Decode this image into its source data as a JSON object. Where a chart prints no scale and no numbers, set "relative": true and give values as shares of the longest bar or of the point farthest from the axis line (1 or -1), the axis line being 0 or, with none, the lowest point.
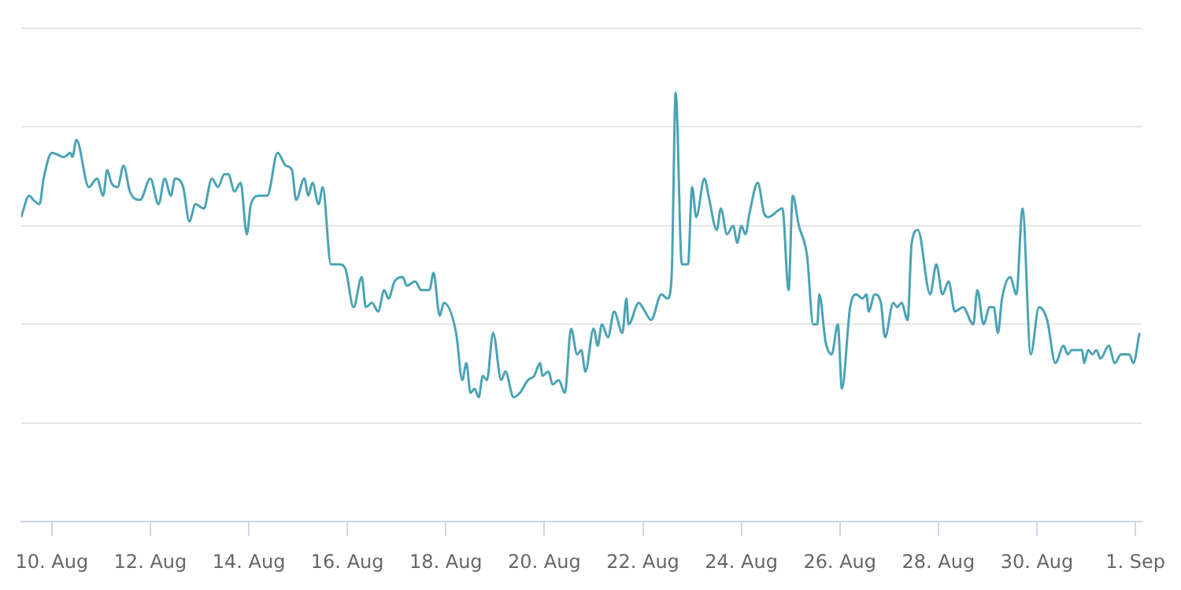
{
  "chart_data": {
    "type": "line",
    "relative": true,
    "grid": "y",
    "legend": false,
    "marker": "none",
    "line_style": "solid",
    "xlim": [
      "--08-09T09:00",
      "--09-01T03:00"
    ],
    "xticks": [
      {
        "value": "--08-10",
        "label": "10. Aug"
      },
      {
        "value": "--08-12",
        "label": "12. Aug"
      },
      {
        "value": "--08-14",
        "label": "14. Aug"
      },
      {
        "value": "--08-16",
        "label": "16. Aug"
      },
      {
        "value": "--08-18",
        "label": "18. Aug"
      },
      {
        "value": "--08-20",
        "label": "20. Aug"
      },
      {
        "value": "--08-22",
        "label": "22. Aug"
      },
      {
        "value": "--08-24",
        "label": "24. Aug"
      },
      {
        "value": "--08-26",
        "label": "26. Aug"
      },
      {
        "value": "--08-28",
        "label": "28. Aug"
      },
      {
        "value": "--08-30",
        "label": "30. Aug"
      },
      {
        "value": "--09-01",
        "label": "1. Sep"
      }
    ],
    "x": [
      "--08-09T09:00",
      "--08-09T13:00",
      "--08-09T15:00",
      "--08-09T18:00",
      "--08-09T20:00",
      "--08-10T00:00",
      "--08-10T06:00",
      "--08-10T09:00",
      "--08-10T10:00",
      "--08-10T12:00",
      "--08-10T18:00",
      "--08-10T22:00",
      "--08-11T01:00",
      "--08-11T03:00",
      "--08-11T05:00",
      "--08-11T08:00",
      "--08-11T11:00",
      "--08-11T14:00",
      "--08-11T19:00",
      "--08-12T00:00",
      "--08-12T04:00",
      "--08-12T07:00",
      "--08-12T10:00",
      "--08-12T12:00",
      "--08-12T16:00",
      "--08-12T19:00",
      "--08-12T22:00",
      "--08-13T02:00",
      "--08-13T06:00",
      "--08-13T09:00",
      "--08-13T12:00",
      "--08-13T14:00",
      "--08-13T17:00",
      "--08-13T20:00",
      "--08-13T23:00",
      "--08-14T01:00",
      "--08-14T05:00",
      "--08-14T09:00",
      "--08-14T14:00",
      "--08-14T18:00",
      "--08-14T21:00",
      "--08-14T23:00",
      "--08-15T03:00",
      "--08-15T05:00",
      "--08-15T07:00",
      "--08-15T10:00",
      "--08-15T12:00",
      "--08-15T16:00",
      "--08-15T20:00",
      "--08-15T23:00",
      "--08-16T03:00",
      "--08-16T07:00",
      "--08-16T09:00",
      "--08-16T12:00",
      "--08-16T15:00",
      "--08-16T18:00",
      "--08-16T20:00",
      "--08-16T23:00",
      "--08-17T03:00",
      "--08-17T05:00",
      "--08-17T09:00",
      "--08-17T12:00",
      "--08-17T16:00",
      "--08-17T18:00",
      "--08-17T21:00",
      "--08-17T23:00",
      "--08-18T05:00",
      "--08-18T08:00",
      "--08-18T10:00",
      "--08-18T12:00",
      "--08-18T14:00",
      "--08-18T16:00",
      "--08-18T18:00",
      "--08-18T20:00",
      "--08-18T23:00",
      "--08-19T03:00",
      "--08-19T05:00",
      "--08-19T09:00",
      "--08-19T12:00",
      "--08-19T16:00",
      "--08-19T19:00",
      "--08-19T22:00",
      "--08-19T23:00",
      "--08-20T02:00",
      "--08-20T04:00",
      "--08-20T07:00",
      "--08-20T10:00",
      "--08-20T13:00",
      "--08-20T16:00",
      "--08-20T18:00",
      "--08-20T20:00",
      "--08-21T00:00",
      "--08-21T02:00",
      "--08-21T04:00",
      "--08-21T07:00",
      "--08-21T10:00",
      "--08-21T14:00",
      "--08-21T16:00",
      "--08-21T17:00",
      "--08-21T22:00",
      "--08-22T01:00",
      "--08-22T04:00",
      "--08-22T09:00",
      "--08-22T12:00",
      "--08-22T14:00",
      "--08-22T16:00",
      "--08-22T19:00",
      "--08-22T22:00",
      "--08-23T00:00",
      "--08-23T02:00",
      "--08-23T06:00",
      "--08-23T08:00",
      "--08-23T12:00",
      "--08-23T14:00",
      "--08-23T17:00",
      "--08-23T20:00",
      "--08-23T22:00",
      "--08-24T00:00",
      "--08-24T02:00",
      "--08-24T04:00",
      "--08-24T08:00",
      "--08-24T11:00",
      "--08-24T13:00",
      "--08-24T20:00",
      "--08-24T23:00",
      "--08-25T01:00",
      "--08-25T04:00",
      "--08-25T08:00",
      "--08-25T11:00",
      "--08-25T13:00",
      "--08-25T14:00",
      "--08-25T17:00",
      "--08-25T20:00",
      "--08-25T23:00",
      "--08-26T01:00",
      "--08-26T05:00",
      "--08-26T08:00",
      "--08-26T11:00",
      "--08-26T13:00",
      "--08-26T14:00",
      "--08-26T17:00",
      "--08-26T20:00",
      "--08-26T22:00",
      "--08-27T02:00",
      "--08-27T04:00",
      "--08-27T06:00",
      "--08-27T09:00",
      "--08-27T11:00",
      "--08-27T14:00",
      "--08-27T20:00",
      "--08-27T23:00",
      "--08-28T02:00",
      "--08-28T05:00",
      "--08-28T08:00",
      "--08-28T12:00",
      "--08-28T17:00",
      "--08-28T19:00",
      "--08-28T22:00",
      "--08-29T01:00",
      "--08-29T03:00",
      "--08-29T05:00",
      "--08-29T07:00",
      "--08-29T11:00",
      "--08-29T14:00",
      "--08-29T17:00",
      "--08-29T21:00",
      "--08-30T01:00",
      "--08-30T05:00",
      "--08-30T09:00",
      "--08-30T13:00",
      "--08-30T15:00",
      "--08-30T17:00",
      "--08-30T22:00",
      "--08-30T23:00",
      "--08-31T01:00",
      "--08-31T03:00",
      "--08-31T05:00",
      "--08-31T07:00",
      "--08-31T11:00",
      "--08-31T14:00",
      "--08-31T17:00",
      "--08-31T21:00",
      "--08-31T23:00",
      "--09-01T02:00"
    ],
    "series": [
      {
        "color": "#4aa3b5",
        "values": [
          0.71,
          0.76,
          0.75,
          0.74,
          0.8,
          0.86,
          0.85,
          0.86,
          0.85,
          0.89,
          0.78,
          0.8,
          0.76,
          0.82,
          0.79,
          0.78,
          0.83,
          0.77,
          0.75,
          0.8,
          0.74,
          0.8,
          0.76,
          0.8,
          0.78,
          0.7,
          0.74,
          0.73,
          0.8,
          0.78,
          0.81,
          0.81,
          0.77,
          0.79,
          0.67,
          0.74,
          0.76,
          0.76,
          0.86,
          0.83,
          0.82,
          0.75,
          0.8,
          0.76,
          0.79,
          0.74,
          0.78,
          0.6,
          0.6,
          0.59,
          0.5,
          0.57,
          0.5,
          0.51,
          0.49,
          0.54,
          0.52,
          0.56,
          0.57,
          0.55,
          0.56,
          0.54,
          0.54,
          0.58,
          0.48,
          0.51,
          0.44,
          0.33,
          0.37,
          0.3,
          0.31,
          0.29,
          0.34,
          0.33,
          0.44,
          0.33,
          0.35,
          0.29,
          0.3,
          0.33,
          0.34,
          0.37,
          0.34,
          0.35,
          0.32,
          0.33,
          0.3,
          0.45,
          0.39,
          0.4,
          0.35,
          0.45,
          0.41,
          0.46,
          0.43,
          0.49,
          0.44,
          0.52,
          0.46,
          0.51,
          0.49,
          0.47,
          0.53,
          0.52,
          0.57,
          1.0,
          0.6,
          0.6,
          0.78,
          0.71,
          0.8,
          0.76,
          0.68,
          0.73,
          0.67,
          0.69,
          0.65,
          0.69,
          0.67,
          0.72,
          0.79,
          0.72,
          0.71,
          0.73,
          0.54,
          0.76,
          0.69,
          0.62,
          0.46,
          0.46,
          0.53,
          0.42,
          0.39,
          0.46,
          0.31,
          0.5,
          0.53,
          0.52,
          0.53,
          0.49,
          0.53,
          0.51,
          0.43,
          0.51,
          0.5,
          0.51,
          0.47,
          0.65,
          0.68,
          0.53,
          0.6,
          0.53,
          0.56,
          0.49,
          0.5,
          0.46,
          0.54,
          0.46,
          0.5,
          0.5,
          0.44,
          0.52,
          0.57,
          0.53,
          0.73,
          0.39,
          0.5,
          0.47,
          0.37,
          0.41,
          0.39,
          0.4,
          0.4,
          0.37,
          0.4,
          0.39,
          0.4,
          0.38,
          0.41,
          0.37,
          0.39,
          0.39,
          0.37,
          0.44
        ]
      }
    ]
  }
}
